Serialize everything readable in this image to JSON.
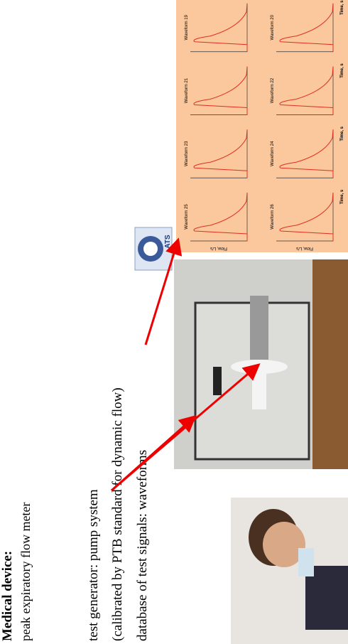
{
  "title": "Medical device:",
  "subtitle": "peak expiratory flow meter",
  "lines": [
    "test generator: pump system",
    "(calibrated by PTB standard for dynamic flow)",
    "database of test signals: waveforms"
  ],
  "logo": {
    "text": "ATS"
  },
  "panel": {
    "waveforms": [
      "Waveform 25",
      "Waveform 23",
      "Waveform 21",
      "Waveform 19",
      "Waveform 26",
      "Waveform 24",
      "Waveform 22",
      "Waveform 20"
    ],
    "y_label": "Flow, L/s",
    "x_label": "Time, s"
  }
}
